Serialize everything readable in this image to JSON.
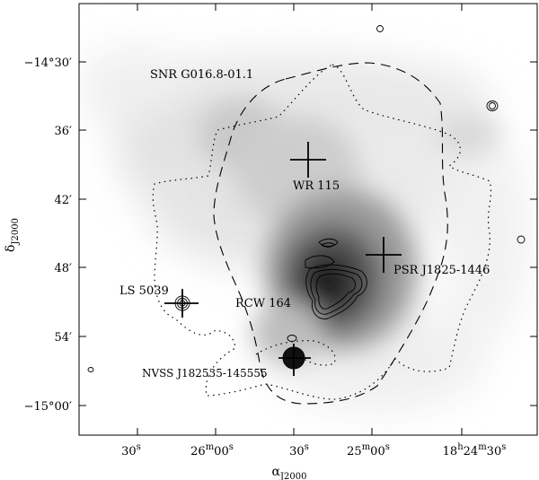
{
  "figure": {
    "x_axis": {
      "label": "α",
      "label_sub": "J2000",
      "ticks": [
        {
          "main": "30",
          "sup": "s"
        },
        {
          "main": "26",
          "sup": "m",
          "main2": "00",
          "sup2": "s"
        },
        {
          "main": "30",
          "sup": "s"
        },
        {
          "main": "25",
          "sup": "m",
          "main2": "00",
          "sup2": "s"
        },
        {
          "main": "18",
          "sup": "h",
          "main2": "24",
          "sup2": "m",
          "main3": "30",
          "sup3": "s"
        }
      ]
    },
    "y_axis": {
      "label": "δ",
      "label_sub": "J2000",
      "ticks": [
        {
          "text": "−14°30′"
        },
        {
          "text": "36′"
        },
        {
          "text": "42′"
        },
        {
          "text": "48′"
        },
        {
          "text": "54′"
        },
        {
          "text": "−15°00′"
        }
      ]
    },
    "labels": {
      "snr": "SNR G016.8-01.1",
      "wr": "WR 115",
      "psr": "PSR J1825-1446",
      "ls": "LS 5039",
      "rcw": "RCW 164",
      "nvss": "NVSS J182535-145555"
    }
  }
}
